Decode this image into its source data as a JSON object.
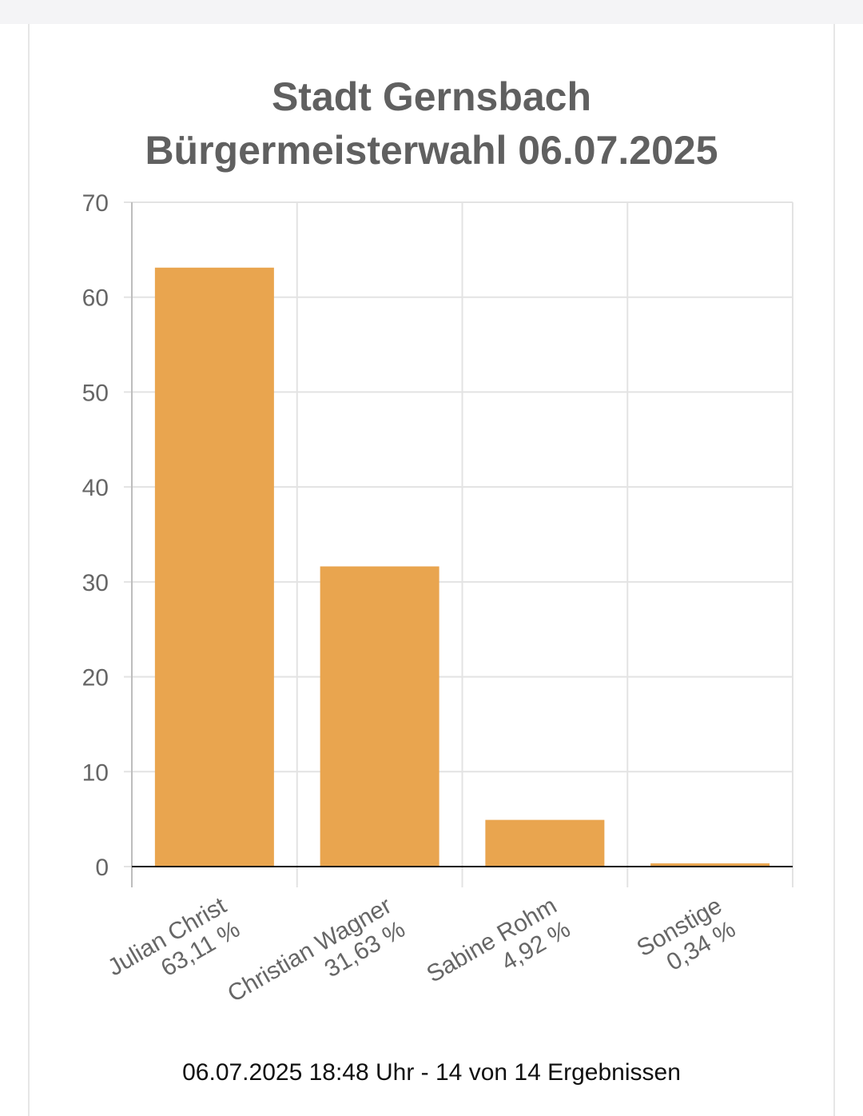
{
  "page": {
    "title_line1": "Stadt Gernsbach",
    "title_line2": "Bürgermeisterwahl 06.07.2025",
    "footer": "06.07.2025 18:48 Uhr - 14 von 14 Ergebnissen"
  },
  "colors": {
    "bar": "#E9A54F",
    "grid": "#e3e3e3",
    "axis_text": "#666666",
    "title": "#606060"
  },
  "chart_data": {
    "type": "bar",
    "categories": [
      {
        "name": "Julian Christ",
        "label": "63,11 %"
      },
      {
        "name": "Christian Wagner",
        "label": "31,63 %"
      },
      {
        "name": "Sabine Rohm",
        "label": "4,92 %"
      },
      {
        "name": "Sonstige",
        "label": "0,34 %"
      }
    ],
    "values": [
      63.11,
      31.63,
      4.92,
      0.34
    ],
    "yticks": [
      "0",
      "10",
      "20",
      "30",
      "40",
      "50",
      "60",
      "70"
    ],
    "ylim": [
      0,
      70
    ],
    "grid": true,
    "legend": "none"
  }
}
